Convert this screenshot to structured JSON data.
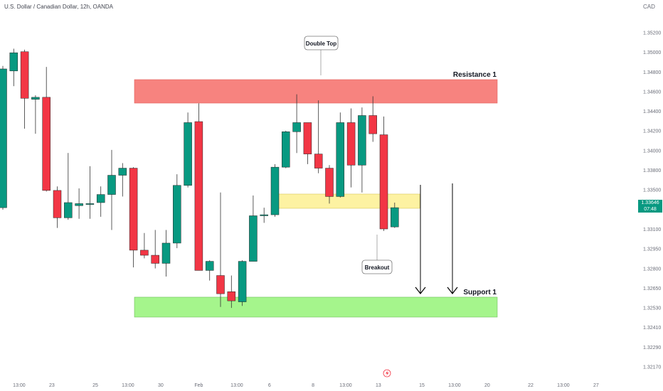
{
  "header": {
    "title": "U.S. Dollar / Canadian Dollar, 12h, OANDA",
    "currency": "CAD"
  },
  "price_badge": {
    "price": "1.33646",
    "countdown": "07:48",
    "color": "#089981"
  },
  "colors": {
    "up": "#089981",
    "down": "#f23645",
    "resistance": "#f7837f",
    "support": "#a5f58c",
    "breakout_zone": "#fdf2a2"
  },
  "icons": {
    "replay": "lightning-icon"
  },
  "chart_data": {
    "type": "candlestick",
    "title": "U.S. Dollar / Canadian Dollar, 12h, OANDA",
    "ylim": [
      1.3205,
      1.3542
    ],
    "y_ticks": [
      "1.35200",
      "1.35000",
      "1.34800",
      "1.34600",
      "1.34400",
      "1.34200",
      "1.34000",
      "1.33800",
      "1.33500",
      "1.33250",
      "1.33100",
      "1.32950",
      "1.32800",
      "1.32650",
      "1.32530",
      "1.32410",
      "1.32290",
      "1.32170"
    ],
    "x_ticks": [
      {
        "label": "13:00",
        "i": 1.5
      },
      {
        "label": "23",
        "i": 4.5
      },
      {
        "label": "25",
        "i": 8.5
      },
      {
        "label": "13:00",
        "i": 11.5
      },
      {
        "label": "30",
        "i": 14.5
      },
      {
        "label": "Feb",
        "i": 18.0
      },
      {
        "label": "13:00",
        "i": 21.5
      },
      {
        "label": "6",
        "i": 24.5
      },
      {
        "label": "8",
        "i": 28.5
      },
      {
        "label": "13:00",
        "i": 31.5
      },
      {
        "label": "13",
        "i": 34.5
      },
      {
        "label": "15",
        "i": 38.5
      },
      {
        "label": "13:00",
        "i": 41.5
      },
      {
        "label": "20",
        "i": 44.5
      },
      {
        "label": "22",
        "i": 48.5
      },
      {
        "label": "13:00",
        "i": 51.5
      },
      {
        "label": "27",
        "i": 54.5
      }
    ],
    "candles": [
      {
        "o": 1.3365,
        "h": 1.3505,
        "l": 1.3363,
        "c": 1.3502
      },
      {
        "o": 1.35,
        "h": 1.3522,
        "l": 1.3485,
        "c": 1.3518
      },
      {
        "o": 1.3519,
        "h": 1.3521,
        "l": 1.3443,
        "c": 1.3473
      },
      {
        "o": 1.3472,
        "h": 1.3476,
        "l": 1.3438,
        "c": 1.3474
      },
      {
        "o": 1.3474,
        "h": 1.3504,
        "l": 1.3381,
        "c": 1.3382
      },
      {
        "o": 1.3382,
        "h": 1.3386,
        "l": 1.3345,
        "c": 1.3355
      },
      {
        "o": 1.3355,
        "h": 1.3419,
        "l": 1.3353,
        "c": 1.337
      },
      {
        "o": 1.3367,
        "h": 1.3384,
        "l": 1.3354,
        "c": 1.3369
      },
      {
        "o": 1.3369,
        "h": 1.3406,
        "l": 1.3354,
        "c": 1.3369
      },
      {
        "o": 1.337,
        "h": 1.3386,
        "l": 1.3356,
        "c": 1.3378
      },
      {
        "o": 1.3378,
        "h": 1.3422,
        "l": 1.3343,
        "c": 1.3397
      },
      {
        "o": 1.3397,
        "h": 1.3409,
        "l": 1.3376,
        "c": 1.3404
      },
      {
        "o": 1.3404,
        "h": 1.3405,
        "l": 1.3306,
        "c": 1.3323
      },
      {
        "o": 1.3323,
        "h": 1.334,
        "l": 1.3315,
        "c": 1.3318
      },
      {
        "o": 1.3318,
        "h": 1.3343,
        "l": 1.3305,
        "c": 1.331
      },
      {
        "o": 1.331,
        "h": 1.3343,
        "l": 1.3297,
        "c": 1.333
      },
      {
        "o": 1.333,
        "h": 1.3398,
        "l": 1.3325,
        "c": 1.3387
      },
      {
        "o": 1.3387,
        "h": 1.3459,
        "l": 1.3385,
        "c": 1.3449
      },
      {
        "o": 1.345,
        "h": 1.3468,
        "l": 1.3303,
        "c": 1.3303
      },
      {
        "o": 1.3303,
        "h": 1.3313,
        "l": 1.3293,
        "c": 1.3312
      },
      {
        "o": 1.3298,
        "h": 1.338,
        "l": 1.3267,
        "c": 1.328
      },
      {
        "o": 1.3282,
        "h": 1.3298,
        "l": 1.3266,
        "c": 1.3273
      },
      {
        "o": 1.3272,
        "h": 1.3313,
        "l": 1.3268,
        "c": 1.3312
      },
      {
        "o": 1.3312,
        "h": 1.3377,
        "l": 1.3312,
        "c": 1.3357
      },
      {
        "o": 1.3357,
        "h": 1.3365,
        "l": 1.335,
        "c": 1.3358
      },
      {
        "o": 1.3358,
        "h": 1.3408,
        "l": 1.3356,
        "c": 1.3405
      },
      {
        "o": 1.3405,
        "h": 1.3441,
        "l": 1.3404,
        "c": 1.344
      },
      {
        "o": 1.344,
        "h": 1.3477,
        "l": 1.3419,
        "c": 1.3449
      },
      {
        "o": 1.3449,
        "h": 1.3448,
        "l": 1.3408,
        "c": 1.3418
      },
      {
        "o": 1.3418,
        "h": 1.3471,
        "l": 1.3399,
        "c": 1.3404
      },
      {
        "o": 1.3404,
        "h": 1.3407,
        "l": 1.3369,
        "c": 1.3376
      },
      {
        "o": 1.3376,
        "h": 1.3459,
        "l": 1.3375,
        "c": 1.3449
      },
      {
        "o": 1.3449,
        "h": 1.3463,
        "l": 1.3385,
        "c": 1.3407
      },
      {
        "o": 1.3407,
        "h": 1.3464,
        "l": 1.338,
        "c": 1.3456
      },
      {
        "o": 1.3456,
        "h": 1.3475,
        "l": 1.343,
        "c": 1.3438
      },
      {
        "o": 1.3437,
        "h": 1.3455,
        "l": 1.3342,
        "c": 1.3344
      },
      {
        "o": 1.3346,
        "h": 1.337,
        "l": 1.3345,
        "c": 1.3365
      }
    ]
  },
  "annotations": {
    "resistance_label": "Resistance 1",
    "support_label": "Support 1",
    "double_top_label": "Double Top",
    "breakout_label": "Breakout"
  }
}
